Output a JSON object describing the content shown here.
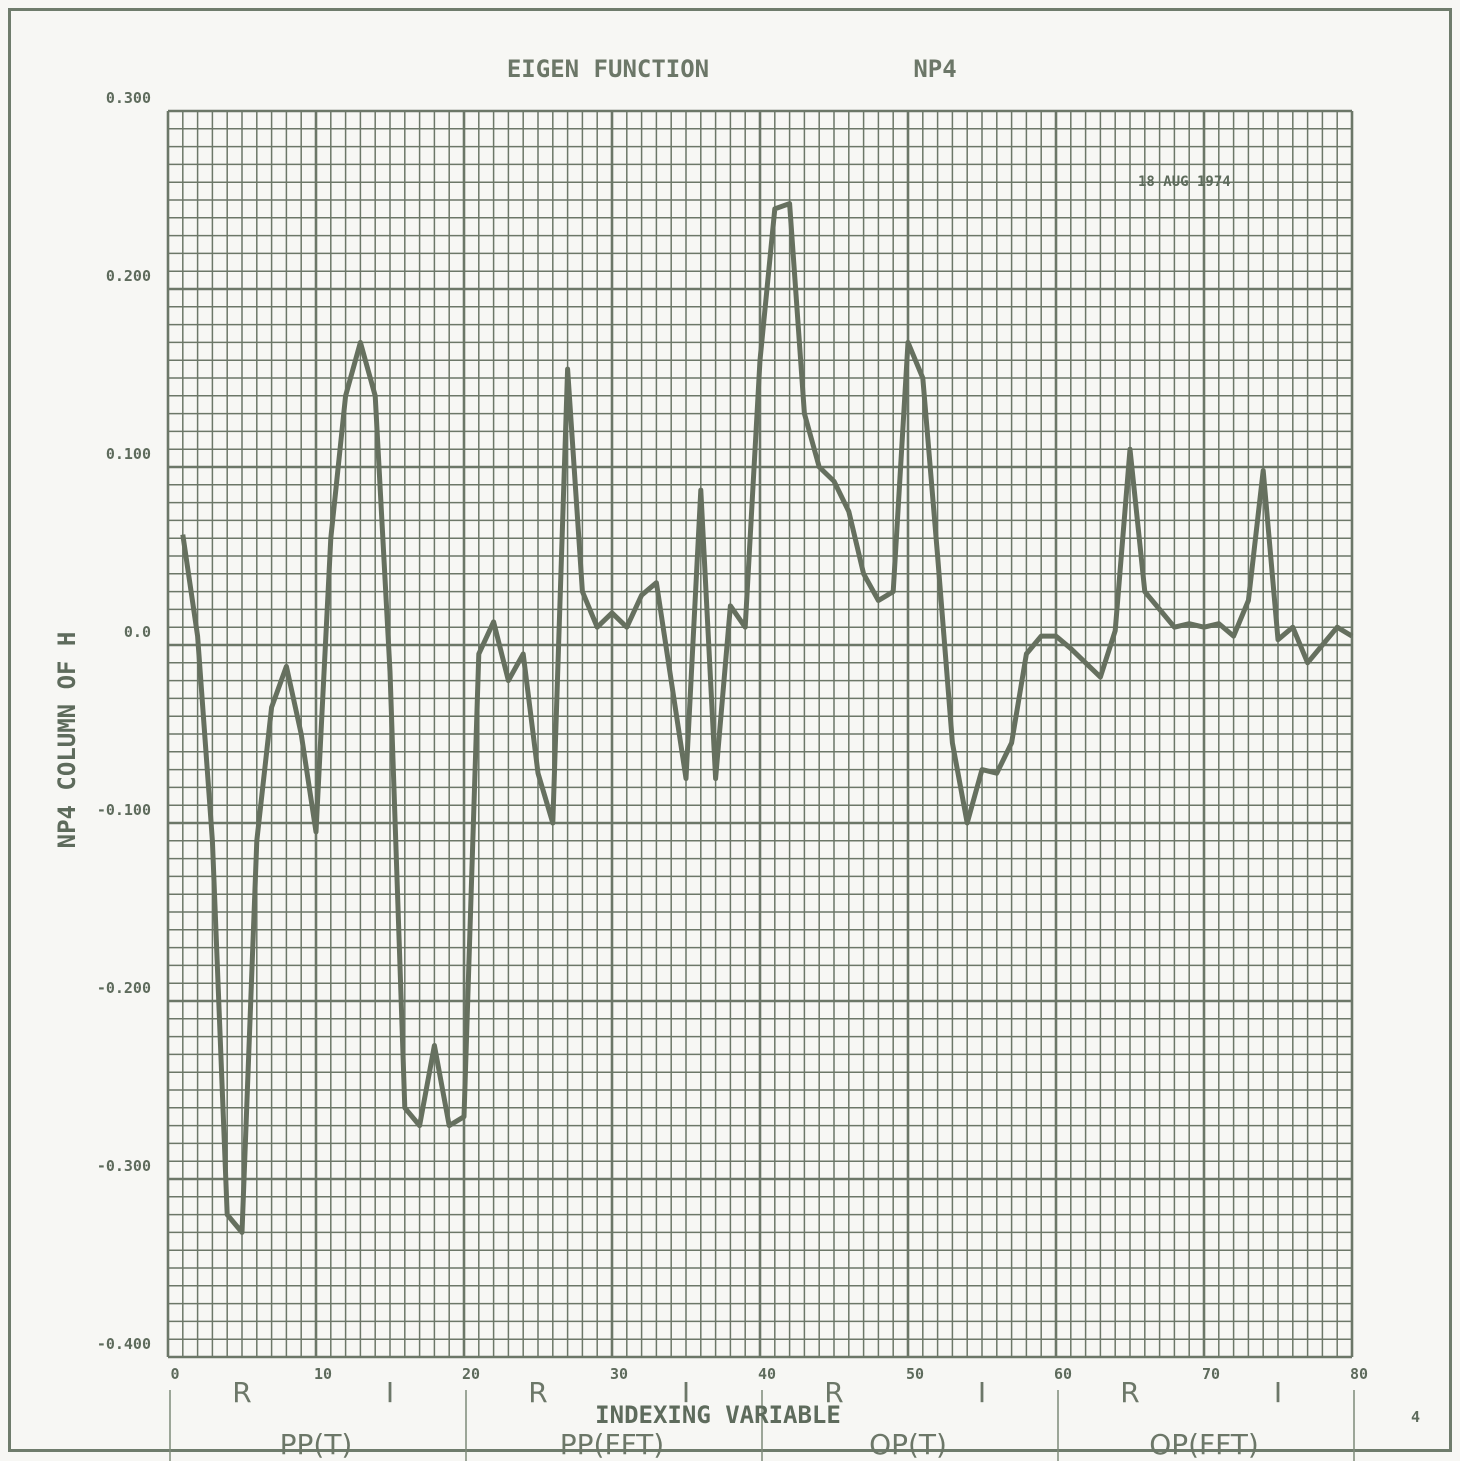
{
  "chart_data": {
    "type": "line",
    "title": "EIGEN FUNCTION",
    "title_right": "NP4",
    "xlabel": "INDEXING VARIABLE",
    "ylabel": "NP4 COLUMN OF H",
    "date_stamp": "18 AUG 1974",
    "page_number": "4",
    "xlim": [
      0,
      80
    ],
    "ylim": [
      -0.4,
      0.3
    ],
    "x_ticks": [
      "0",
      "10",
      "20",
      "30",
      "40",
      "50",
      "60",
      "70",
      "80"
    ],
    "y_ticks": [
      "0.300",
      "0.200",
      "0.100",
      "0.0",
      "-0.100",
      "-0.200",
      "-0.300",
      "-0.400"
    ],
    "grid": true,
    "color": "#6c7768",
    "section_labels": [
      "R",
      "I",
      "R",
      "I",
      "R",
      "I",
      "R",
      "I"
    ],
    "group_labels": [
      "PP(T)",
      "PP(FFT)",
      "OP(T)",
      "OP(FFT)"
    ],
    "series": [
      {
        "x": [
          1,
          2,
          3,
          4,
          5,
          6,
          7,
          8,
          9,
          10,
          11,
          12,
          13,
          14,
          15,
          16,
          17,
          18,
          19,
          20,
          21,
          22,
          23,
          24,
          25,
          26,
          27,
          28,
          29,
          30,
          31,
          32,
          33,
          34,
          35,
          36,
          37,
          38,
          39,
          40,
          41,
          42,
          43,
          44,
          45,
          46,
          47,
          48,
          49,
          50,
          51,
          52,
          53,
          54,
          55,
          56,
          57,
          58,
          59,
          60,
          61,
          62,
          63,
          64,
          65,
          66,
          67,
          68,
          69,
          70,
          71,
          72,
          73,
          74,
          75,
          76,
          77,
          78,
          79,
          80
        ],
        "y": [
          0.062,
          0.005,
          -0.11,
          -0.32,
          -0.33,
          -0.11,
          -0.035,
          -0.012,
          -0.05,
          -0.105,
          0.06,
          0.14,
          0.17,
          0.14,
          -0.015,
          -0.26,
          -0.27,
          -0.225,
          -0.27,
          -0.265,
          -0.005,
          0.013,
          -0.02,
          -0.005,
          -0.072,
          -0.1,
          0.155,
          0.03,
          0.01,
          0.018,
          0.01,
          0.028,
          0.035,
          -0.02,
          -0.075,
          0.087,
          -0.075,
          0.022,
          0.01,
          0.16,
          0.245,
          0.248,
          0.13,
          0.1,
          0.092,
          0.075,
          0.04,
          0.025,
          0.03,
          0.17,
          0.15,
          0.05,
          -0.055,
          -0.1,
          -0.07,
          -0.072,
          -0.055,
          -0.005,
          0.005,
          0.005,
          -0.002,
          -0.01,
          -0.018,
          0.008,
          0.11,
          0.03,
          0.02,
          0.01,
          0.012,
          0.01,
          0.012,
          0.005,
          0.025,
          0.098,
          0.003,
          0.01,
          -0.01,
          0.0,
          0.01,
          0.005
        ]
      }
    ]
  }
}
